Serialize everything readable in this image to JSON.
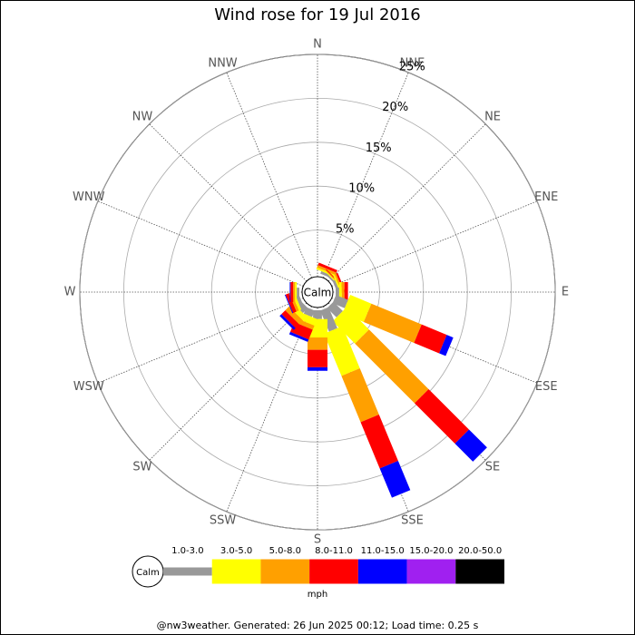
{
  "chart_data": {
    "type": "rose",
    "title": "Wind rose for 19 Jul 2016",
    "center_label": "Calm",
    "unit_label": "mph",
    "footer": "@nw3weather. Generated: 26 Jun 2025 00:12; Load time: 0.25 s",
    "categories": [
      "N",
      "NNE",
      "NE",
      "ENE",
      "E",
      "ESE",
      "SE",
      "SSE",
      "S",
      "SSW",
      "SW",
      "WSW",
      "W",
      "WNW",
      "NW",
      "NNW"
    ],
    "rlim": [
      0,
      25
    ],
    "rticks": [
      {
        "value": 5,
        "label": "5%"
      },
      {
        "value": 10,
        "label": "10%"
      },
      {
        "value": 15,
        "label": "15%"
      },
      {
        "value": 20,
        "label": "20%"
      },
      {
        "value": 25,
        "label": "25%"
      }
    ],
    "series": [
      {
        "name": "1.0-3.0",
        "color": "#999999",
        "values": [
          0,
          0.3,
          0.2,
          0.3,
          0.4,
          1.5,
          1.5,
          2.6,
          1.0,
          0.8,
          0.8,
          0.4,
          0.3,
          0,
          0,
          0
        ]
      },
      {
        "name": "3.0-5.0",
        "color": "#ffff00",
        "values": [
          0,
          0.2,
          0.1,
          0.2,
          0.3,
          2.6,
          3.6,
          5.2,
          2.1,
          0.8,
          0.6,
          0.3,
          0.2,
          0,
          0,
          0
        ]
      },
      {
        "name": "5.0-8.0",
        "color": "#ffa000",
        "values": [
          0,
          0.3,
          0.1,
          0.2,
          0.3,
          6.2,
          9.6,
          5.7,
          1.4,
          0.5,
          0.6,
          0.3,
          0.2,
          0,
          0,
          0
        ]
      },
      {
        "name": "8.0-11.0",
        "color": "#ff0000",
        "values": [
          0,
          0.3,
          0.1,
          0.2,
          0.4,
          3.1,
          6.5,
          5.7,
          2.0,
          1.2,
          0.6,
          0.4,
          0.3,
          0,
          0,
          0
        ]
      },
      {
        "name": "11.0-15.0",
        "color": "#0000ff",
        "values": [
          0,
          0,
          0,
          0,
          0,
          0.8,
          2.9,
          3.6,
          0.4,
          0.3,
          0.3,
          0.1,
          0.1,
          0,
          0,
          0
        ]
      },
      {
        "name": "15.0-20.0",
        "color": "#a020f0",
        "values": [
          0,
          0,
          0,
          0,
          0,
          0,
          0,
          0,
          0,
          0,
          0,
          0,
          0,
          0,
          0,
          0
        ]
      },
      {
        "name": "20.0-50.0",
        "color": "#000000",
        "values": [
          0,
          0,
          0,
          0,
          0,
          0,
          0,
          0,
          0,
          0,
          0,
          0,
          0,
          0,
          0,
          0
        ]
      }
    ]
  }
}
